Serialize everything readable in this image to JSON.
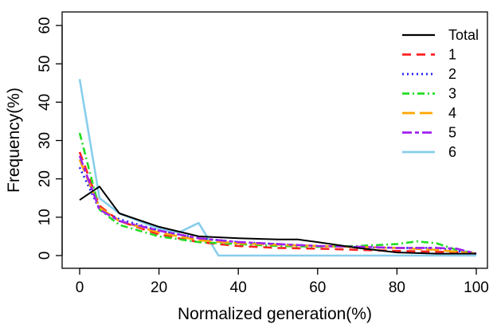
{
  "chart_data": {
    "type": "line",
    "title": "",
    "xlabel": "Normalized generation(%)",
    "ylabel": "Frequency(%)",
    "xlim": [
      0,
      100
    ],
    "ylim": [
      0,
      60
    ],
    "xticks": [
      0,
      20,
      40,
      60,
      80,
      100
    ],
    "yticks": [
      0,
      10,
      20,
      30,
      40,
      50,
      60
    ],
    "grid": false,
    "legend_position": "top-right",
    "series": [
      {
        "name": "Total",
        "color": "#000000",
        "dash": "solid",
        "x": [
          0,
          5,
          10,
          20,
          30,
          40,
          50,
          55,
          60,
          70,
          80,
          90,
          100
        ],
        "y": [
          14.5,
          18,
          11,
          7.5,
          5,
          4.5,
          4.2,
          4.2,
          3.5,
          2,
          0.8,
          0.5,
          0.5
        ]
      },
      {
        "name": "1",
        "color": "#ff2020",
        "dash": "dashed",
        "x": [
          0,
          5,
          10,
          20,
          30,
          40,
          50,
          60,
          70,
          80,
          90,
          100
        ],
        "y": [
          27,
          13,
          9,
          5.5,
          3.5,
          2.5,
          2,
          1.8,
          1.5,
          1.2,
          1,
          0.8
        ]
      },
      {
        "name": "2",
        "color": "#2020ff",
        "dash": "dotted",
        "x": [
          0,
          5,
          10,
          20,
          30,
          40,
          50,
          60,
          70,
          80,
          90,
          100
        ],
        "y": [
          23,
          12,
          9.5,
          6.5,
          4.5,
          3.5,
          3,
          2.5,
          2.2,
          2,
          2,
          0.5
        ]
      },
      {
        "name": "3",
        "color": "#22dd22",
        "dash": "dashdot",
        "x": [
          0,
          5,
          10,
          20,
          30,
          40,
          50,
          60,
          70,
          80,
          85,
          90,
          95,
          100
        ],
        "y": [
          32,
          12,
          8,
          5,
          3.5,
          3,
          2.5,
          2.3,
          2.5,
          3,
          3.7,
          3.2,
          1.5,
          0.5
        ]
      },
      {
        "name": "4",
        "color": "#ffa500",
        "dash": "longdash",
        "x": [
          0,
          5,
          10,
          20,
          30,
          40,
          50,
          60,
          70,
          80,
          90,
          100
        ],
        "y": [
          25,
          12.5,
          9,
          6,
          4,
          3.2,
          2.8,
          2.5,
          2.2,
          2,
          1.5,
          0.5
        ]
      },
      {
        "name": "5",
        "color": "#a020f0",
        "dash": "twodash",
        "x": [
          0,
          5,
          10,
          20,
          30,
          40,
          50,
          60,
          70,
          80,
          90,
          95,
          100
        ],
        "y": [
          26,
          12,
          9,
          6.5,
          4.5,
          3.5,
          3,
          2.5,
          2.3,
          2,
          2,
          1.8,
          0.5
        ]
      },
      {
        "name": "6",
        "color": "#87ceeb",
        "dash": "solid",
        "x": [
          0,
          5,
          10,
          20,
          25,
          30,
          35,
          40,
          50,
          60,
          70,
          80,
          90,
          100
        ],
        "y": [
          46,
          15,
          11,
          7,
          6,
          8.5,
          0,
          0,
          0,
          0,
          0,
          0,
          0,
          0
        ]
      }
    ]
  }
}
